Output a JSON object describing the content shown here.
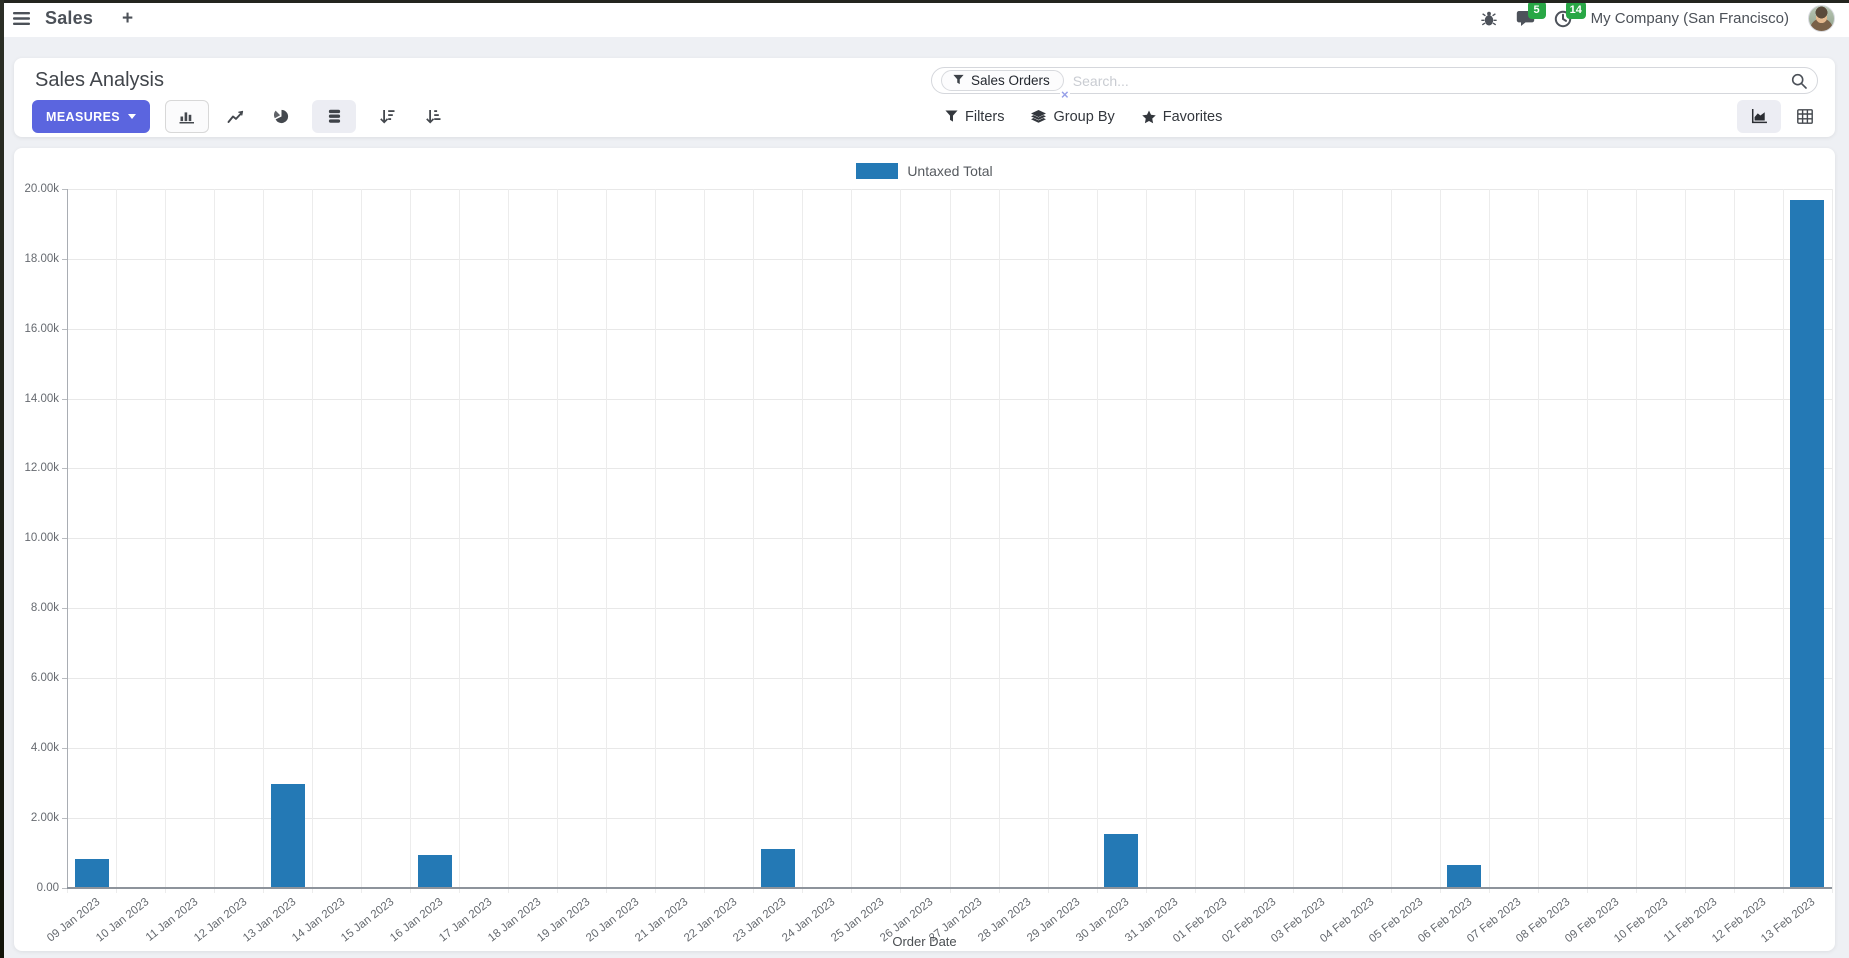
{
  "nav": {
    "app_name": "Sales",
    "new_tab_label": "+",
    "messages_badge": "5",
    "activities_badge": "14",
    "company": "My Company (San Francisco)"
  },
  "control_panel": {
    "title": "Sales Analysis",
    "measures_label": "MEASURES",
    "search": {
      "facet_label": "Sales Orders",
      "facet_remove": "×",
      "placeholder": "Search..."
    },
    "filters_label": "Filters",
    "group_by_label": "Group By",
    "favorites_label": "Favorites"
  },
  "chart_data": {
    "type": "bar",
    "title": "",
    "xlabel": "Order Date",
    "ylabel": "",
    "legend_position": "top",
    "grid": true,
    "ylim": [
      0,
      20000
    ],
    "bar_color": "#2479b5",
    "y_ticks": [
      {
        "v": 20000,
        "label": "20.00k"
      },
      {
        "v": 18000,
        "label": "18.00k"
      },
      {
        "v": 16000,
        "label": "16.00k"
      },
      {
        "v": 14000,
        "label": "14.00k"
      },
      {
        "v": 12000,
        "label": "12.00k"
      },
      {
        "v": 10000,
        "label": "10.00k"
      },
      {
        "v": 8000,
        "label": "8.00k"
      },
      {
        "v": 6000,
        "label": "6.00k"
      },
      {
        "v": 4000,
        "label": "4.00k"
      },
      {
        "v": 2000,
        "label": "2.00k"
      },
      {
        "v": 0,
        "label": "0.00"
      }
    ],
    "categories": [
      "09 Jan 2023",
      "10 Jan 2023",
      "11 Jan 2023",
      "12 Jan 2023",
      "13 Jan 2023",
      "14 Jan 2023",
      "15 Jan 2023",
      "16 Jan 2023",
      "17 Jan 2023",
      "18 Jan 2023",
      "19 Jan 2023",
      "20 Jan 2023",
      "21 Jan 2023",
      "22 Jan 2023",
      "23 Jan 2023",
      "24 Jan 2023",
      "25 Jan 2023",
      "26 Jan 2023",
      "27 Jan 2023",
      "28 Jan 2023",
      "29 Jan 2023",
      "30 Jan 2023",
      "31 Jan 2023",
      "01 Feb 2023",
      "02 Feb 2023",
      "03 Feb 2023",
      "04 Feb 2023",
      "05 Feb 2023",
      "06 Feb 2023",
      "07 Feb 2023",
      "08 Feb 2023",
      "09 Feb 2023",
      "10 Feb 2023",
      "11 Feb 2023",
      "12 Feb 2023",
      "13 Feb 2023"
    ],
    "series": [
      {
        "name": "Untaxed Total",
        "values": [
          820,
          0,
          0,
          0,
          2950,
          0,
          0,
          940,
          0,
          0,
          0,
          0,
          0,
          0,
          1100,
          0,
          0,
          0,
          0,
          0,
          0,
          1530,
          0,
          0,
          0,
          0,
          0,
          0,
          630,
          0,
          0,
          0,
          0,
          0,
          0,
          19680
        ]
      }
    ]
  }
}
